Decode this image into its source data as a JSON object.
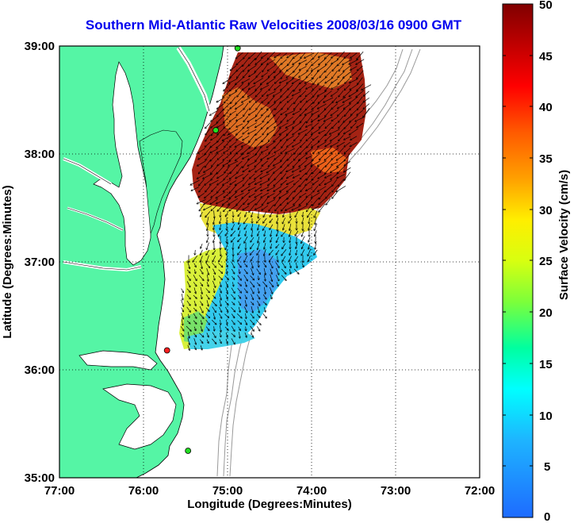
{
  "title": "Southern Mid-Atlantic Raw Velocities 2008/03/16 0900 GMT",
  "xlabel": "Longitude (Degrees:Minutes)",
  "ylabel": "Latitude (Degrees:Minutes)",
  "x_ticks": [
    "77:00",
    "76:00",
    "75:00",
    "74:00",
    "73:00",
    "72:00"
  ],
  "y_ticks": [
    "39:00",
    "38:00",
    "37:00",
    "36:00",
    "35:00"
  ],
  "colorbar": {
    "label": "Surface Velocity (cm/s)",
    "min": 0,
    "max": 50,
    "ticks": [
      "50",
      "45",
      "40",
      "35",
      "30",
      "25",
      "20",
      "15",
      "10",
      "5",
      "0"
    ]
  },
  "colors": {
    "land": "#55f5a5",
    "water": "#ffffff",
    "title": "#0000ee",
    "station_green": "#22dd22",
    "station_red": "#ff2020",
    "bathymetry": "#999999"
  },
  "map_extent": {
    "lon": [
      -77,
      -72
    ],
    "lat": [
      35,
      39
    ]
  },
  "stations": [
    {
      "color": "green",
      "lon": -74.88,
      "lat": 38.98
    },
    {
      "color": "green",
      "lon": -75.14,
      "lat": 38.22
    },
    {
      "color": "red",
      "lon": -75.72,
      "lat": 36.18
    },
    {
      "color": "green",
      "lon": -75.47,
      "lat": 35.25
    }
  ]
}
